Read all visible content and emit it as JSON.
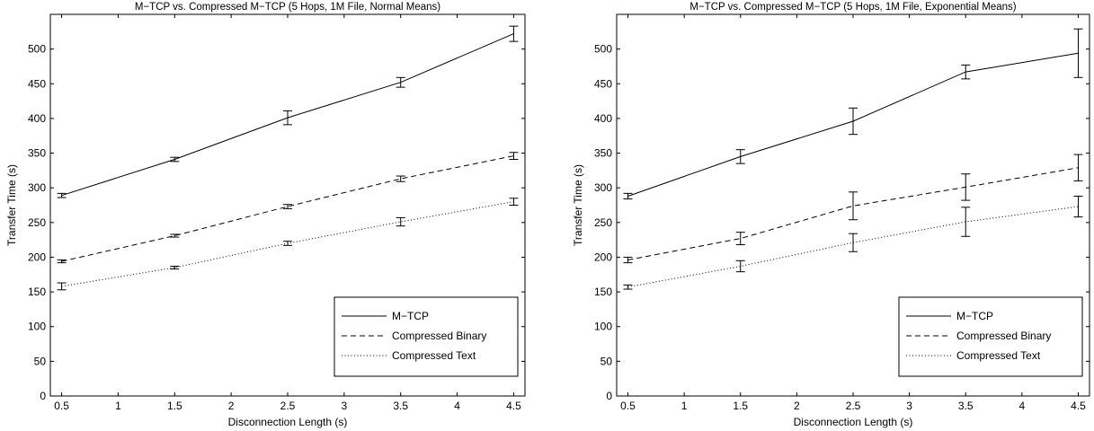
{
  "chart_data": [
    {
      "type": "line",
      "title": "M−TCP vs. Compressed M−TCP (5 Hops, 1M File, Normal Means)",
      "xlabel": "Disconnection Length (s)",
      "ylabel": "Transfer Time (s)",
      "xlim": [
        0.4,
        4.6
      ],
      "ylim": [
        0,
        550
      ],
      "xticks": [
        "0.5",
        "1",
        "1.5",
        "2",
        "2.5",
        "3",
        "3.5",
        "4",
        "4.5"
      ],
      "yticks": [
        "0",
        "50",
        "100",
        "150",
        "200",
        "250",
        "300",
        "350",
        "400",
        "450",
        "500"
      ],
      "grid": false,
      "legend_position": "bottom-right",
      "x": [
        0.5,
        1.5,
        2.5,
        3.5,
        4.5
      ],
      "series": [
        {
          "name": "M−TCP",
          "style": "solid",
          "values": [
            289,
            341,
            401,
            452,
            522
          ],
          "err": [
            3,
            3,
            10,
            7,
            11
          ]
        },
        {
          "name": "Compressed Binary",
          "style": "dashed",
          "values": [
            194,
            231,
            273,
            313,
            346
          ],
          "err": [
            2,
            2,
            3,
            4,
            5
          ]
        },
        {
          "name": "Compressed Text",
          "style": "dotted",
          "values": [
            158,
            185,
            220,
            251,
            280
          ],
          "err": [
            5,
            2,
            3,
            6,
            5
          ]
        }
      ]
    },
    {
      "type": "line",
      "title": "M−TCP vs. Compressed M−TCP (5 Hops, 1M File, Exponential Means)",
      "xlabel": "Disconnection Length (s)",
      "ylabel": "Transfer Time (s)",
      "xlim": [
        0.4,
        4.6
      ],
      "ylim": [
        0,
        550
      ],
      "xticks": [
        "0.5",
        "1",
        "1.5",
        "2",
        "2.5",
        "3",
        "3.5",
        "4",
        "4.5"
      ],
      "yticks": [
        "0",
        "50",
        "100",
        "150",
        "200",
        "250",
        "300",
        "350",
        "400",
        "450",
        "500"
      ],
      "grid": false,
      "legend_position": "bottom-right",
      "x": [
        0.5,
        1.5,
        2.5,
        3.5,
        4.5
      ],
      "series": [
        {
          "name": "M−TCP",
          "style": "solid",
          "values": [
            288,
            345,
            396,
            467,
            494
          ],
          "err": [
            4,
            10,
            19,
            10,
            35
          ]
        },
        {
          "name": "Compressed Binary",
          "style": "dashed",
          "values": [
            196,
            227,
            274,
            301,
            329
          ],
          "err": [
            4,
            9,
            20,
            19,
            19
          ]
        },
        {
          "name": "Compressed Text",
          "style": "dotted",
          "values": [
            157,
            187,
            221,
            251,
            273
          ],
          "err": [
            3,
            8,
            13,
            21,
            15
          ]
        }
      ]
    }
  ]
}
